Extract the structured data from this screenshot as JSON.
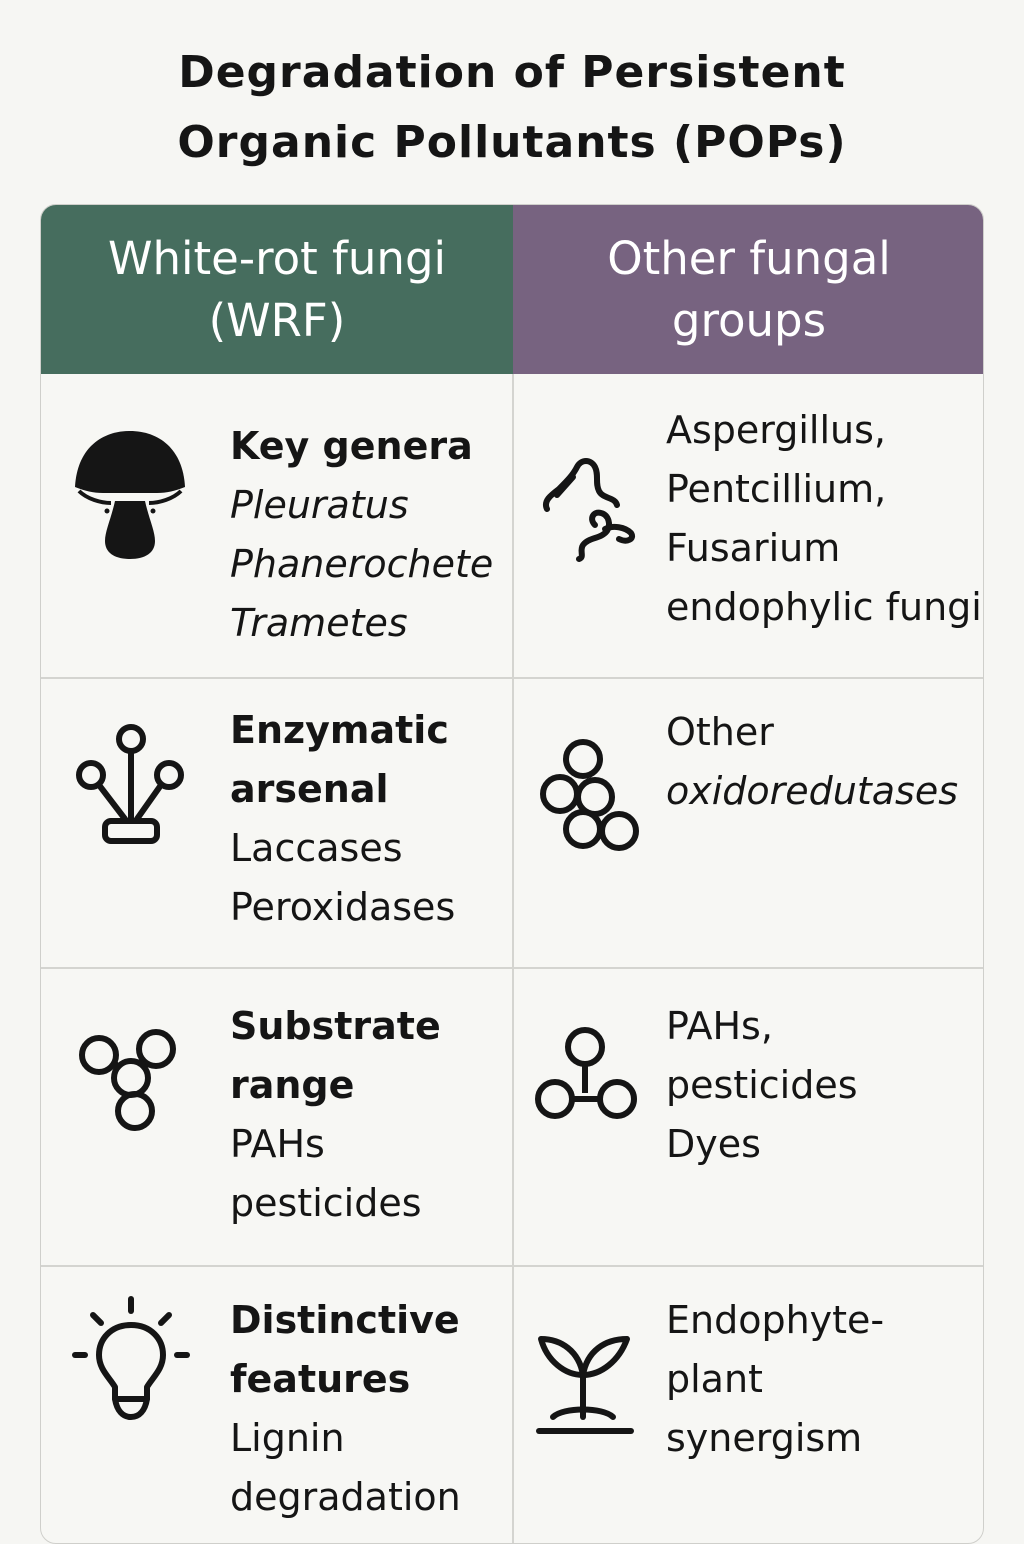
{
  "title": {
    "line1": "Degradation of Persistent",
    "line2": "Organic Pollutants (POPs)"
  },
  "columns": [
    {
      "line1": "White-rot fungi",
      "line2": "(WRF)",
      "color": "#466d5e"
    },
    {
      "line1": "Other fungal",
      "line2": "groups",
      "color": "#776380"
    }
  ],
  "rows": [
    {
      "wrf": {
        "icon": "mushroom-icon",
        "heading": "Key genera",
        "items": [
          "Pleuratus",
          "Phanerochete",
          "Trametes"
        ]
      },
      "other": {
        "icon": "hyphae-icon",
        "lines": [
          "Aspergillus,",
          "Pentcillium,",
          "Fusarium",
          "endophylic fungi"
        ]
      }
    },
    {
      "wrf": {
        "icon": "enzyme-molecule-icon",
        "heading_line1": "Enzymatic",
        "heading_line2": "arsenal",
        "items": [
          "Laccases",
          "Peroxidases"
        ]
      },
      "other": {
        "icon": "molecule-cluster-icon",
        "line1": "Other",
        "line2": "oxidoredutases"
      }
    },
    {
      "wrf": {
        "icon": "molecule-icon",
        "heading_line1": "Substrate",
        "heading_line2": "range",
        "items": [
          "PAHs",
          "pesticides"
        ]
      },
      "other": {
        "icon": "molecule-chain-icon",
        "lines": [
          "PAHs,",
          "pesticides",
          "Dyes"
        ]
      }
    },
    {
      "wrf": {
        "icon": "lightbulb-icon",
        "heading_line1": "Distinctive",
        "heading_line2": "features",
        "items": [
          "Lignin",
          "degradation"
        ]
      },
      "other": {
        "icon": "seedling-icon",
        "lines": [
          "Endophyte-",
          "plant",
          "synergism"
        ]
      }
    }
  ]
}
